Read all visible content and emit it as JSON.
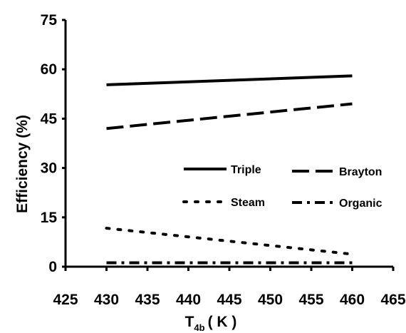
{
  "chart_data": {
    "type": "line",
    "title": "",
    "xlabel": {
      "main": "T",
      "sub": "4b",
      "unit": "( K )"
    },
    "ylabel": "Efficiency  (%)",
    "xlim": [
      425,
      465
    ],
    "ylim": [
      0,
      75
    ],
    "xticks": [
      425,
      430,
      435,
      440,
      445,
      450,
      455,
      460,
      465
    ],
    "yticks": [
      0,
      15,
      30,
      45,
      60,
      75
    ],
    "grid": false,
    "legend_position": "center-right",
    "series": [
      {
        "name": "Triple",
        "dash": "solid",
        "x": [
          430,
          460
        ],
        "y": [
          55.3,
          58.0
        ]
      },
      {
        "name": "Brayton",
        "dash": "long-dash",
        "x": [
          430,
          460
        ],
        "y": [
          42.0,
          49.5
        ]
      },
      {
        "name": "Steam",
        "dash": "dotted",
        "x": [
          430,
          460
        ],
        "y": [
          11.7,
          3.8
        ]
      },
      {
        "name": "Organic",
        "dash": "dash-dot",
        "x": [
          430,
          460
        ],
        "y": [
          1.2,
          1.2
        ]
      }
    ]
  }
}
